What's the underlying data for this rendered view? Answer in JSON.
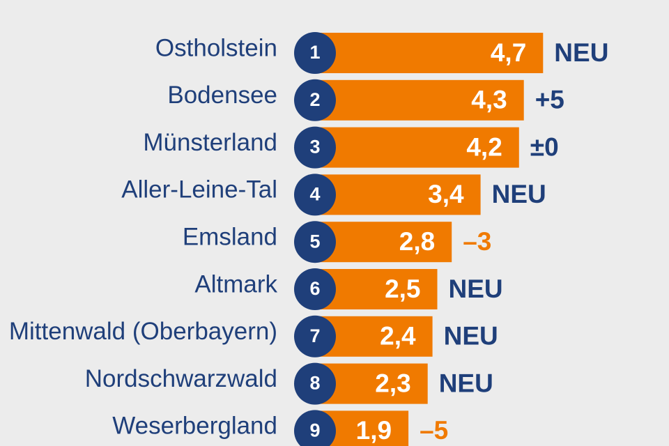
{
  "colors": {
    "bar": "#f07a00",
    "badge": "#1f3f7a",
    "label": "#1f3f7a",
    "change_positive": "#1f3f7a",
    "change_negative": "#f07a00",
    "background": "#ececec"
  },
  "chart_data": {
    "type": "bar",
    "orientation": "horizontal",
    "categories": [
      "Ostholstein",
      "Bodensee",
      "Münsterland",
      "Aller-Leine-Tal",
      "Emsland",
      "Altmark",
      "Mittenwald (Oberbayern)",
      "Nordschwarzwald",
      "Weserbergland"
    ],
    "ranks": [
      "1",
      "2",
      "3",
      "4",
      "5",
      "6",
      "7",
      "8",
      "9"
    ],
    "values": [
      4.7,
      4.3,
      4.2,
      3.4,
      2.8,
      2.5,
      2.4,
      2.3,
      1.9
    ],
    "value_labels": [
      "4,7",
      "4,3",
      "4,2",
      "3,4",
      "2,8",
      "2,5",
      "2,4",
      "2,3",
      "1,9"
    ],
    "changes": [
      "NEU",
      "+5",
      "±0",
      "NEU",
      "–3",
      "NEU",
      "NEU",
      "NEU",
      "–5"
    ],
    "change_direction": [
      "new",
      "up",
      "same",
      "new",
      "down",
      "new",
      "new",
      "new",
      "down"
    ],
    "grid": false,
    "legend": "none"
  }
}
